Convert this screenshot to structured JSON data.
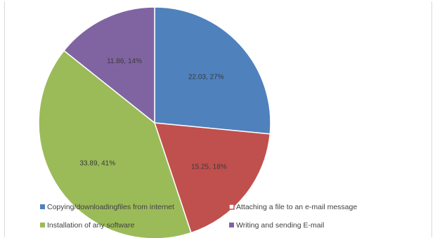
{
  "chart_data": {
    "type": "pie",
    "title": "",
    "slices": [
      {
        "name": "Copying/downloading files from internet",
        "value": 22.03,
        "percent": "27%",
        "label": "22.03, 27%",
        "color": "#4f81bd"
      },
      {
        "name": "Attaching a file to an e-mail message",
        "value": 15.25,
        "percent": "18%",
        "label": "15.25, 18%",
        "color": "#c0504d"
      },
      {
        "name": "Installation of any software",
        "value": 33.89,
        "percent": "41%",
        "label": "33.89, 41%",
        "color": "#9bbb59"
      },
      {
        "name": "Writing and sending E-mail",
        "value": 11.86,
        "percent": "14%",
        "label": "11.86, 14%",
        "color": "#8064a2"
      }
    ],
    "legend": {
      "placement": "bottom",
      "entries": [
        "Copying/downloadingfiles from internet",
        "Attaching a file to an e-mail message",
        "Installation of any software",
        "Writing and sending E-mail"
      ]
    }
  }
}
